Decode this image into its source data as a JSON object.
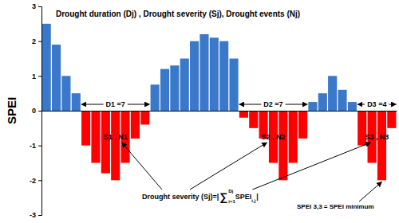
{
  "chart_data": {
    "type": "bar",
    "title": "Drought duration (Dj) , Drought severity (Sj), Drought events (Nj)",
    "y_label": "SPEI",
    "categories": [
      null,
      null,
      null,
      null,
      null,
      null,
      null,
      null,
      null,
      null,
      null,
      null,
      null,
      null,
      null,
      null,
      null,
      null,
      null,
      null,
      null,
      null,
      null,
      null,
      null,
      null,
      null,
      null,
      null,
      null,
      null,
      null,
      null,
      null,
      null,
      null
    ],
    "values": [
      2.5,
      1.9,
      1.0,
      0.5,
      -1.0,
      -1.5,
      -1.8,
      -2.0,
      -1.5,
      -0.8,
      -0.4,
      0.75,
      1.2,
      1.3,
      1.5,
      2.0,
      2.2,
      2.1,
      2.0,
      1.5,
      -0.2,
      -0.5,
      -0.8,
      -1.5,
      -2.0,
      -1.5,
      -0.8,
      0.25,
      0.5,
      1.0,
      0.6,
      0.25,
      -1.0,
      -1.5,
      -2.0,
      -0.5
    ],
    "colors": [
      "#3a78c9",
      "#3a78c9",
      "#3a78c9",
      "#3a78c9",
      "#ff0000",
      "#ff0000",
      "#ff0000",
      "#ff0000",
      "#ff0000",
      "#ff0000",
      "#ff0000",
      "#3a78c9",
      "#3a78c9",
      "#3a78c9",
      "#3a78c9",
      "#3a78c9",
      "#3a78c9",
      "#3a78c9",
      "#3a78c9",
      "#3a78c9",
      "#ff0000",
      "#ff0000",
      "#ff0000",
      "#ff0000",
      "#ff0000",
      "#ff0000",
      "#ff0000",
      "#3a78c9",
      "#3a78c9",
      "#3a78c9",
      "#3a78c9",
      "#3a78c9",
      "#ff0000",
      "#ff0000",
      "#ff0000",
      "#ff0000"
    ],
    "ylim": [
      -3,
      3
    ],
    "yticks": [
      -3,
      -2,
      -1,
      0,
      1,
      2,
      3
    ],
    "grid": false,
    "tick_labels": "y",
    "annotations": [
      "D1 =7",
      "D2 =7",
      "D3 =4",
      "S1 , N1",
      "S2 , N2",
      "S3 , N3",
      "Drought severity (Sj)=|",
      "∑",
      "i=1",
      "Dj",
      " SPEI",
      "i,j",
      "|",
      "SPEI 3,3 = SPEI minimum"
    ]
  }
}
